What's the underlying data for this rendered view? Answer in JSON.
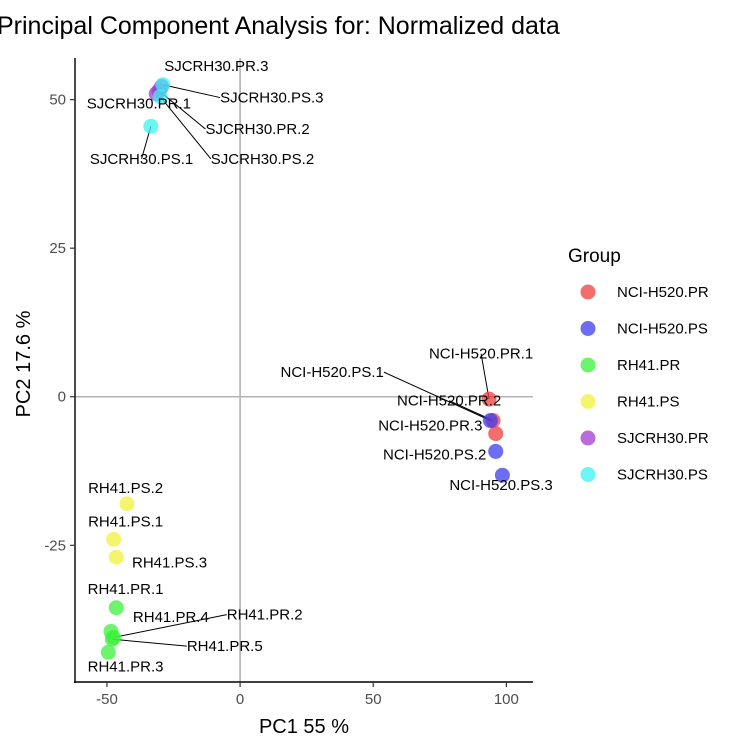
{
  "chart_data": {
    "type": "scatter",
    "title": "Principal Component Analysis for:  Normalized data",
    "xlabel": "PC1 55 %",
    "ylabel": "PC2 17.6 %",
    "xlim": [
      -62,
      110
    ],
    "ylim": [
      -48,
      57
    ],
    "xticks": [
      -50,
      0,
      50,
      100
    ],
    "yticks": [
      -25,
      0,
      25,
      50
    ],
    "xtick_labels": [
      "-50",
      "0",
      "50",
      "100"
    ],
    "ytick_labels": [
      "-25",
      "0",
      "25",
      "50"
    ],
    "zero_lines": true,
    "grid": false,
    "legend": {
      "title": "Group",
      "position": "right",
      "entries": [
        "NCI-H520.PR",
        "NCI-H520.PS",
        "RH41.PR",
        "RH41.PS",
        "SJCRH30.PR",
        "SJCRH30.PS"
      ]
    },
    "series": [
      {
        "name": "NCI-H520.PR",
        "color": "#f03c3c",
        "points": [
          {
            "label": "NCI-H520.PR.1",
            "x": 93.5,
            "y": -0.4
          },
          {
            "label": "NCI-H520.PR.2",
            "x": 95,
            "y": -4
          },
          {
            "label": "NCI-H520.PR.3",
            "x": 96,
            "y": -6.2
          }
        ]
      },
      {
        "name": "NCI-H520.PS",
        "color": "#3c3cf0",
        "points": [
          {
            "label": "NCI-H520.PS.1",
            "x": 94,
            "y": -4
          },
          {
            "label": "NCI-H520.PS.2",
            "x": 96,
            "y": -9.2
          },
          {
            "label": "NCI-H520.PS.3",
            "x": 98.5,
            "y": -13.2
          }
        ]
      },
      {
        "name": "RH41.PR",
        "color": "#3cf03c",
        "points": [
          {
            "label": "RH41.PR.1",
            "x": -46.5,
            "y": -35.5
          },
          {
            "label": "RH41.PR.2",
            "x": -47.5,
            "y": -40.5
          },
          {
            "label": "RH41.PR.3",
            "x": -49.5,
            "y": -43
          },
          {
            "label": "RH41.PR.4",
            "x": -48.5,
            "y": -39.5
          },
          {
            "label": "RH41.PR.5",
            "x": -48,
            "y": -40.8
          }
        ]
      },
      {
        "name": "RH41.PS",
        "color": "#f0f03c",
        "points": [
          {
            "label": "RH41.PS.1",
            "x": -47.5,
            "y": -24
          },
          {
            "label": "RH41.PS.2",
            "x": -42.5,
            "y": -18
          },
          {
            "label": "RH41.PS.3",
            "x": -46.5,
            "y": -27
          }
        ]
      },
      {
        "name": "SJCRH30.PR",
        "color": "#a03cd2",
        "points": [
          {
            "label": "SJCRH30.PR.1",
            "x": -31.5,
            "y": 51
          },
          {
            "label": "SJCRH30.PR.2",
            "x": -30.5,
            "y": 51.5
          },
          {
            "label": "SJCRH30.PR.3",
            "x": -29.5,
            "y": 52.2
          }
        ]
      },
      {
        "name": "SJCRH30.PS",
        "color": "#3cf0f0",
        "points": [
          {
            "label": "SJCRH30.PS.1",
            "x": -33.5,
            "y": 45.5
          },
          {
            "label": "SJCRH30.PS.2",
            "x": -30,
            "y": 50.5
          },
          {
            "label": "SJCRH30.PS.3",
            "x": -29,
            "y": 52.5
          }
        ]
      }
    ],
    "annotations": [
      {
        "point": "SJCRH30.PR.3",
        "x": -28.5,
        "y": 54.8,
        "anchor": "start",
        "leader": false
      },
      {
        "point": "SJCRH30.PS.3",
        "x": -7.5,
        "y": 49.5,
        "anchor": "start",
        "leader": true
      },
      {
        "point": "SJCRH30.PR.1",
        "x": -38,
        "y": 48.5,
        "anchor": "middle",
        "leader": false
      },
      {
        "point": "SJCRH30.PR.2",
        "x": -13,
        "y": 44.2,
        "anchor": "start",
        "leader": true
      },
      {
        "point": "SJCRH30.PS.1",
        "x": -37,
        "y": 39.2,
        "anchor": "middle",
        "leader": true
      },
      {
        "point": "SJCRH30.PS.2",
        "x": -11,
        "y": 39.2,
        "anchor": "start",
        "leader": true
      },
      {
        "point": "NCI-H520.PR.1",
        "x": 90.5,
        "y": 6.4,
        "anchor": "middle",
        "leader": true
      },
      {
        "point": "NCI-H520.PS.1",
        "x": 54,
        "y": 3.3,
        "anchor": "end",
        "leader": true
      },
      {
        "point": "NCI-H520.PR.2",
        "x": 78.5,
        "y": -1.5,
        "anchor": "middle",
        "leader": true
      },
      {
        "point": "NCI-H520.PR.3",
        "x": 91,
        "y": -5.7,
        "anchor": "end",
        "leader": false
      },
      {
        "point": "NCI-H520.PS.2",
        "x": 92.5,
        "y": -10.6,
        "anchor": "end",
        "leader": false
      },
      {
        "point": "NCI-H520.PS.3",
        "x": 98,
        "y": -15.7,
        "anchor": "middle",
        "leader": false
      },
      {
        "point": "RH41.PS.2",
        "x": -43,
        "y": -16.2,
        "anchor": "middle",
        "leader": false
      },
      {
        "point": "RH41.PS.1",
        "x": -43,
        "y": -21.8,
        "anchor": "middle",
        "leader": false
      },
      {
        "point": "RH41.PS.3",
        "x": -26.5,
        "y": -28.7,
        "anchor": "middle",
        "leader": false
      },
      {
        "point": "RH41.PR.1",
        "x": -43,
        "y": -33.2,
        "anchor": "middle",
        "leader": false
      },
      {
        "point": "RH41.PR.4",
        "x": -26,
        "y": -37.9,
        "anchor": "middle",
        "leader": false
      },
      {
        "point": "RH41.PR.2",
        "x": -5,
        "y": -37.5,
        "anchor": "start",
        "leader": true
      },
      {
        "point": "RH41.PR.5",
        "x": -20,
        "y": -42.8,
        "anchor": "start",
        "leader": true
      },
      {
        "point": "RH41.PR.3",
        "x": -43,
        "y": -46.2,
        "anchor": "middle",
        "leader": false
      }
    ]
  }
}
